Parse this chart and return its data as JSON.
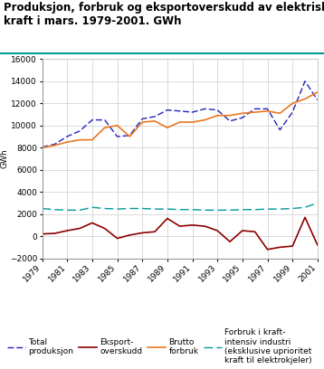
{
  "title": "Produksjon, forbruk og eksportoverskudd av elektrisk\nkraft i mars. 1979-2001. GWh",
  "ylabel": "GWh",
  "years": [
    1979,
    1980,
    1981,
    1982,
    1983,
    1984,
    1985,
    1986,
    1987,
    1988,
    1989,
    1990,
    1991,
    1992,
    1993,
    1994,
    1995,
    1996,
    1997,
    1998,
    1999,
    2000,
    2001
  ],
  "total_produksjon": [
    8050,
    8300,
    9000,
    9500,
    10500,
    10500,
    9000,
    9100,
    10600,
    10800,
    11400,
    11300,
    11200,
    11500,
    11400,
    10400,
    10700,
    11500,
    11500,
    9600,
    11200,
    14000,
    12300
  ],
  "eksport_overskudd": [
    200,
    250,
    500,
    700,
    1200,
    700,
    -200,
    100,
    300,
    400,
    1600,
    900,
    1000,
    900,
    500,
    -500,
    500,
    400,
    -1200,
    -1000,
    -900,
    1700,
    -800
  ],
  "brutto_forbruk": [
    8000,
    8200,
    8500,
    8700,
    8700,
    9800,
    10000,
    9000,
    10300,
    10400,
    9800,
    10300,
    10300,
    10500,
    10900,
    10900,
    11100,
    11200,
    11300,
    11100,
    12000,
    12400,
    13000
  ],
  "kraftintensiv": [
    2500,
    2400,
    2350,
    2350,
    2600,
    2500,
    2450,
    2500,
    2500,
    2450,
    2450,
    2400,
    2400,
    2350,
    2350,
    2350,
    2400,
    2400,
    2450,
    2450,
    2500,
    2600,
    3000
  ],
  "ylim": [
    -2000,
    16000
  ],
  "yticks": [
    -2000,
    0,
    2000,
    4000,
    6000,
    8000,
    10000,
    12000,
    14000,
    16000
  ],
  "xticks": [
    1979,
    1981,
    1983,
    1985,
    1987,
    1989,
    1991,
    1993,
    1995,
    1997,
    1999,
    2001
  ],
  "color_produksjon": "#2222bb",
  "color_eksport": "#8b0000",
  "color_brutto": "#e87722",
  "color_kraftintensiv": "#009999",
  "legend_labels": [
    "Total\nproduksjon",
    "Eksport-\noverskudd",
    "Brutto\nforbruk",
    "Forbruk i kraft-\nintensiv industri\n(eksklusive uprioritet\nkraft til elektrokjeler)"
  ],
  "title_color": "#000000",
  "bg_color": "#ffffff",
  "grid_color": "#cccccc",
  "title_fontsize": 8.5,
  "tick_fontsize": 6.5,
  "legend_fontsize": 6.5,
  "teal_line_color": "#009999"
}
